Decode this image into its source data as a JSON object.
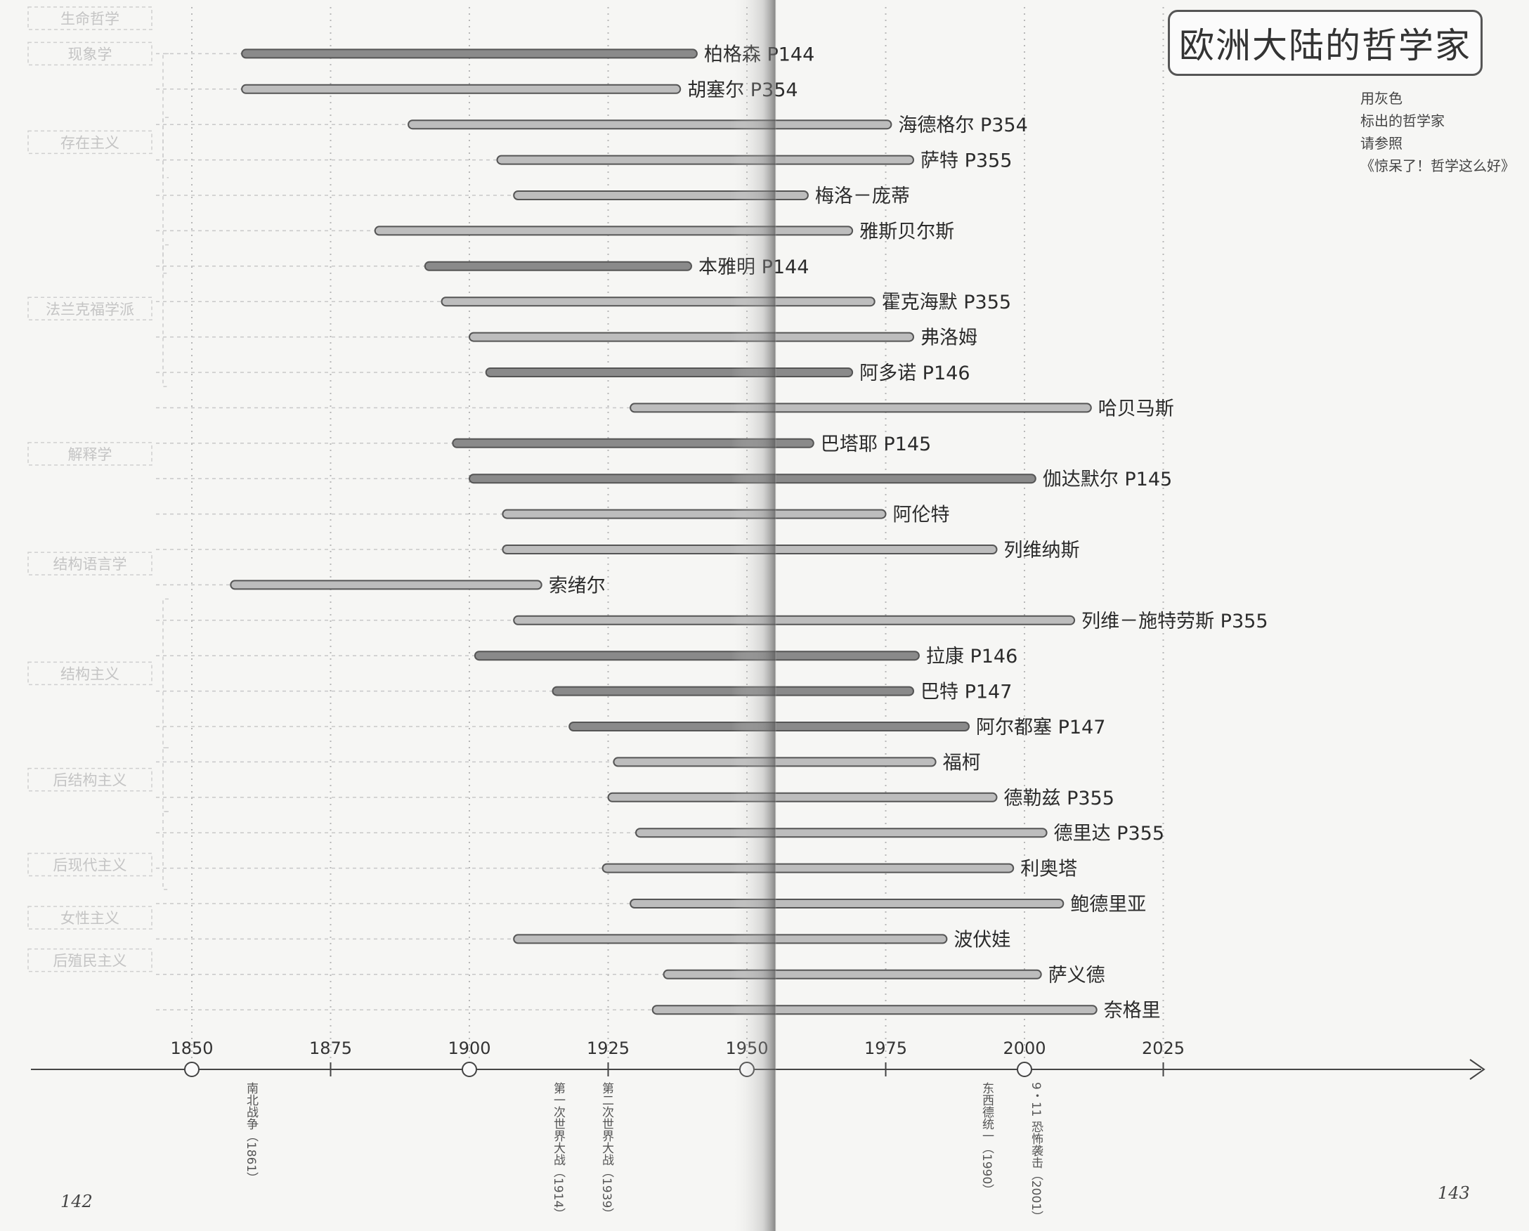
{
  "title": "欧洲大陆的哲学家",
  "note": [
    "用灰色",
    "标出的哲学家",
    "请参照",
    "《惊呆了！哲学这么好》"
  ],
  "page_numbers": {
    "left": "142",
    "right": "143"
  },
  "colors": {
    "bar_dark": "#8a8a8a",
    "bar_light": "#bdbdbd",
    "page": "#f6f6f4",
    "school": "#c4c4c4"
  },
  "chart_data": {
    "type": "timeline",
    "x_axis": {
      "ticks": [
        1850,
        1875,
        1900,
        1925,
        1950,
        1975,
        2000,
        2025
      ],
      "range": [
        1850,
        2025
      ]
    },
    "events": [
      {
        "year": 1850,
        "label": "南北战争（1861）"
      },
      {
        "year": 1900,
        "label": "第一次世界大战（1914）"
      },
      {
        "year": 1950,
        "label": "第二次世界大战（1939）"
      },
      {
        "year": 2000,
        "label": "东西德统一（1990）"
      },
      {
        "year": 2000,
        "label": "9・11 恐怖袭击（2001）"
      }
    ],
    "schools": [
      {
        "label": "生命哲学",
        "row": 0
      },
      {
        "label": "现象学",
        "row": 1
      },
      {
        "label": "存在主义",
        "row": 3.5
      },
      {
        "label": "法兰克福学派",
        "row": 8.2
      },
      {
        "label": "解释学",
        "row": 12.3
      },
      {
        "label": "结构语言学",
        "row": 15.4
      },
      {
        "label": "结构主义",
        "row": 18.5
      },
      {
        "label": "后结构主义",
        "row": 21.5
      },
      {
        "label": "后现代主义",
        "row": 23.9
      },
      {
        "label": "女性主义",
        "row": 25.4
      },
      {
        "label": "后殖民主义",
        "row": 26.6
      }
    ],
    "philosophers": [
      {
        "name": "柏格森 P144",
        "birth": 1859,
        "death": 1941,
        "dark": true
      },
      {
        "name": "胡塞尔 P354",
        "birth": 1859,
        "death": 1938,
        "dark": false
      },
      {
        "name": "海德格尔 P354",
        "birth": 1889,
        "death": 1976,
        "dark": false
      },
      {
        "name": "萨特 P355",
        "birth": 1905,
        "death": 1980,
        "dark": false
      },
      {
        "name": "梅洛－庞蒂",
        "birth": 1908,
        "death": 1961,
        "dark": false
      },
      {
        "name": "雅斯贝尔斯",
        "birth": 1883,
        "death": 1969,
        "dark": false
      },
      {
        "name": "本雅明 P144",
        "birth": 1892,
        "death": 1940,
        "dark": true
      },
      {
        "name": "霍克海默 P355",
        "birth": 1895,
        "death": 1973,
        "dark": false
      },
      {
        "name": "弗洛姆",
        "birth": 1900,
        "death": 1980,
        "dark": false
      },
      {
        "name": "阿多诺 P146",
        "birth": 1903,
        "death": 1969,
        "dark": true
      },
      {
        "name": "哈贝马斯",
        "birth": 1929,
        "death": 2012,
        "dark": false
      },
      {
        "name": "巴塔耶 P145",
        "birth": 1897,
        "death": 1962,
        "dark": true
      },
      {
        "name": "伽达默尔 P145",
        "birth": 1900,
        "death": 2002,
        "dark": true
      },
      {
        "name": "阿伦特",
        "birth": 1906,
        "death": 1975,
        "dark": false
      },
      {
        "name": "列维纳斯",
        "birth": 1906,
        "death": 1995,
        "dark": false
      },
      {
        "name": "索绪尔",
        "birth": 1857,
        "death": 1913,
        "dark": false
      },
      {
        "name": "列维－施特劳斯 P355",
        "birth": 1908,
        "death": 2009,
        "dark": false
      },
      {
        "name": "拉康 P146",
        "birth": 1901,
        "death": 1981,
        "dark": true
      },
      {
        "name": "巴特 P147",
        "birth": 1915,
        "death": 1980,
        "dark": true
      },
      {
        "name": "阿尔都塞 P147",
        "birth": 1918,
        "death": 1990,
        "dark": true
      },
      {
        "name": "福柯",
        "birth": 1926,
        "death": 1984,
        "dark": false
      },
      {
        "name": "德勒兹 P355",
        "birth": 1925,
        "death": 1995,
        "dark": false
      },
      {
        "name": "德里达 P355",
        "birth": 1930,
        "death": 2004,
        "dark": false
      },
      {
        "name": "利奥塔",
        "birth": 1924,
        "death": 1998,
        "dark": false
      },
      {
        "name": "鲍德里亚",
        "birth": 1929,
        "death": 2007,
        "dark": false
      },
      {
        "name": "波伏娃",
        "birth": 1908,
        "death": 1986,
        "dark": false
      },
      {
        "name": "萨义德",
        "birth": 1935,
        "death": 2003,
        "dark": false
      },
      {
        "name": "奈格里",
        "birth": 1933,
        "death": 2013,
        "dark": false
      }
    ]
  }
}
